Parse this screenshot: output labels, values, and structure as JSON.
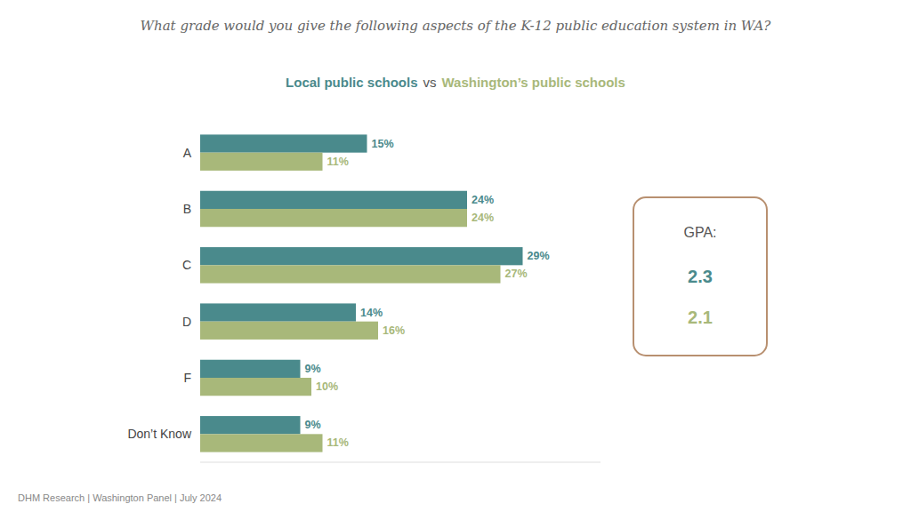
{
  "chart_data": {
    "type": "bar",
    "orientation": "horizontal",
    "title": "What grade would you give the following aspects of the K-12 public education system in WA?",
    "categories": [
      "A",
      "B",
      "C",
      "D",
      "F",
      "Don’t Know"
    ],
    "series": [
      {
        "name": "Local public schools",
        "color": "#4a8a8c",
        "values": [
          15,
          24,
          29,
          14,
          9,
          9
        ],
        "value_labels": [
          "15%",
          "24%",
          "29%",
          "14%",
          "9%",
          "9%"
        ],
        "gpa": 2.3
      },
      {
        "name": "Washington’s public schools",
        "color": "#a8b87a",
        "values": [
          11,
          24,
          27,
          16,
          10,
          11
        ],
        "value_labels": [
          "11%",
          "24%",
          "27%",
          "16%",
          "10%",
          "11%"
        ],
        "gpa": 2.1
      }
    ],
    "annotations": [
      "vs",
      "GPA:",
      "DHM Research | Washington Panel | July 2024"
    ],
    "xlim": [
      0,
      36
    ],
    "data_labels": true,
    "tick_labels": "y",
    "grid": false
  }
}
